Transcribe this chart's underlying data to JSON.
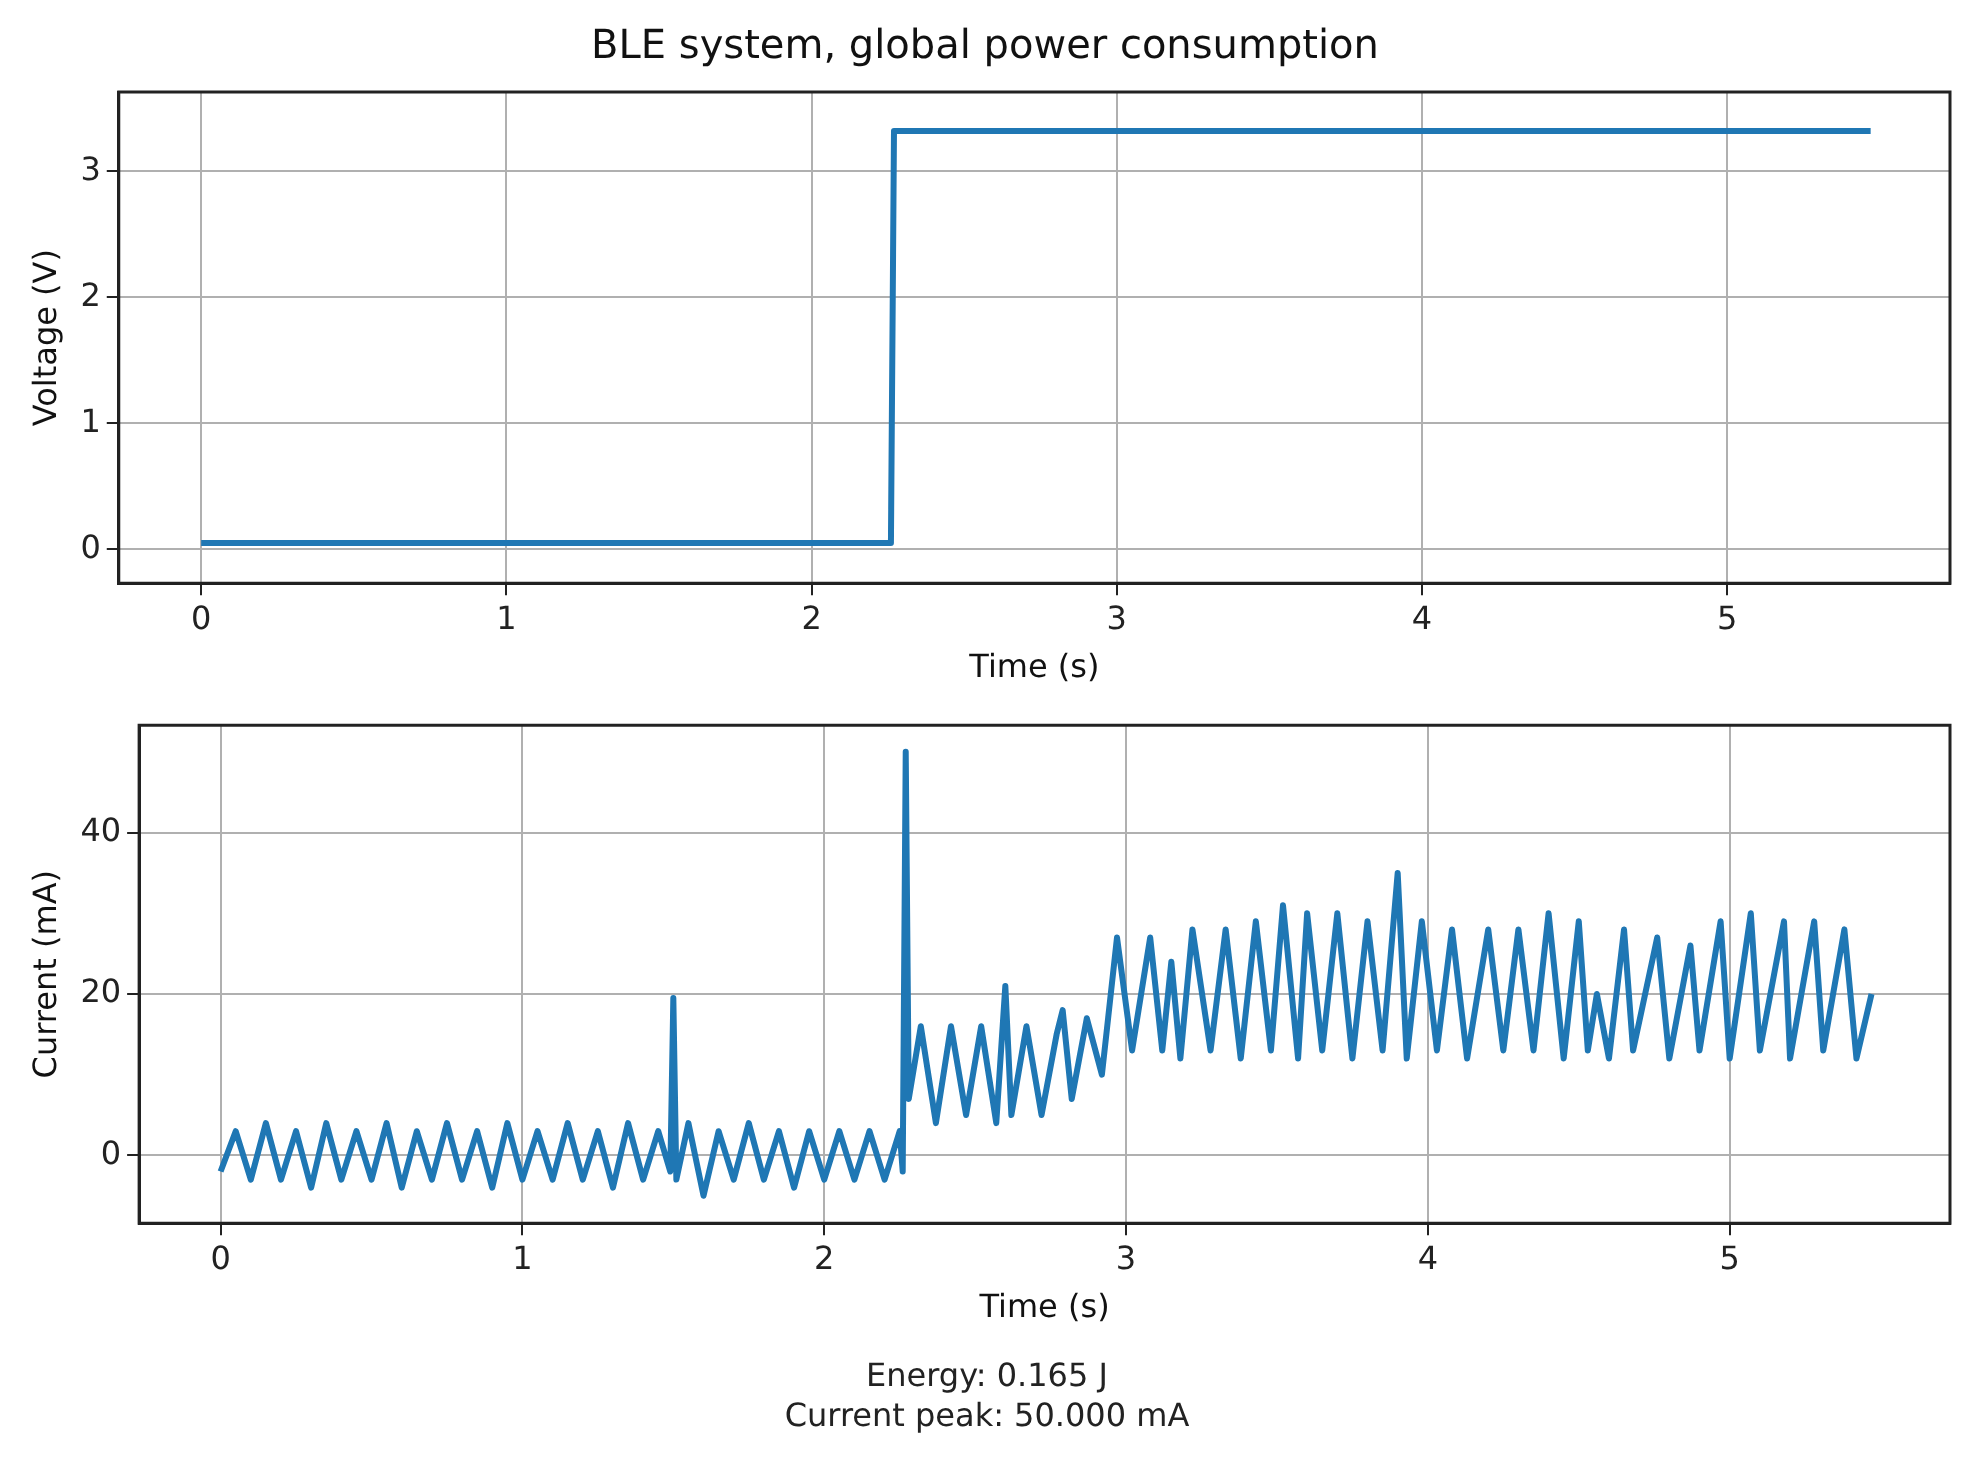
{
  "chart_data": [
    {
      "type": "line",
      "title": "BLE system, global power consumption",
      "xlabel": "Time (s)",
      "ylabel": "Voltage (V)",
      "xlim": [
        -0.27,
        5.73
      ],
      "xticks": [
        0,
        1,
        2,
        3,
        4,
        5
      ],
      "ylim": [
        -0.27,
        3.63
      ],
      "yticks": [
        0,
        1,
        2,
        3
      ],
      "grid": true,
      "legend": false,
      "marker": "none",
      "line_style": "solid",
      "series": [
        {
          "color": "#1f77b4",
          "x": [
            0,
            2.26,
            2.27,
            5.47
          ],
          "values": [
            0.05,
            0.05,
            3.32,
            3.32
          ]
        }
      ]
    },
    {
      "type": "line",
      "xlabel": "Time (s)",
      "ylabel": "Current (mA)",
      "xlim": [
        -0.27,
        5.73
      ],
      "xticks": [
        0,
        1,
        2,
        3,
        4,
        5
      ],
      "ylim": [
        -8.4,
        53.3
      ],
      "yticks": [
        0,
        20,
        40
      ],
      "grid": true,
      "legend": false,
      "marker": "none",
      "line_style": "solid",
      "annotations": [
        "Energy: 0.165 J",
        "Current peak: 50.000 mA"
      ],
      "series": [
        {
          "color": "#1f77b4",
          "x": [
            0,
            0.05,
            0.1,
            0.15,
            0.2,
            0.25,
            0.3,
            0.35,
            0.4,
            0.45,
            0.5,
            0.55,
            0.6,
            0.65,
            0.7,
            0.75,
            0.8,
            0.85,
            0.9,
            0.95,
            1.0,
            1.05,
            1.1,
            1.15,
            1.2,
            1.25,
            1.3,
            1.35,
            1.4,
            1.45,
            1.49,
            1.5,
            1.51,
            1.55,
            1.6,
            1.65,
            1.7,
            1.75,
            1.8,
            1.85,
            1.9,
            1.95,
            2.0,
            2.05,
            2.1,
            2.15,
            2.2,
            2.25,
            2.26,
            2.27,
            2.28,
            2.32,
            2.37,
            2.42,
            2.47,
            2.52,
            2.57,
            2.6,
            2.62,
            2.67,
            2.72,
            2.77,
            2.79,
            2.82,
            2.87,
            2.92,
            2.97,
            3.02,
            3.08,
            3.12,
            3.15,
            3.18,
            3.22,
            3.28,
            3.33,
            3.38,
            3.43,
            3.48,
            3.52,
            3.57,
            3.6,
            3.65,
            3.7,
            3.75,
            3.8,
            3.85,
            3.9,
            3.93,
            3.98,
            4.03,
            4.08,
            4.13,
            4.2,
            4.25,
            4.3,
            4.35,
            4.4,
            4.45,
            4.5,
            4.53,
            4.56,
            4.6,
            4.65,
            4.68,
            4.72,
            4.76,
            4.8,
            4.87,
            4.9,
            4.97,
            5.0,
            5.07,
            5.1,
            5.18,
            5.2,
            5.28,
            5.31,
            5.38,
            5.42,
            5.47
          ],
          "values": [
            -2,
            3,
            -3,
            4,
            -3,
            3,
            -4,
            4,
            -3,
            3,
            -3,
            4,
            -4,
            3,
            -3,
            4,
            -3,
            3,
            -4,
            4,
            -3,
            3,
            -3,
            4,
            -3,
            3,
            -4,
            4,
            -3,
            3,
            -2,
            19.5,
            -3,
            4,
            -5,
            3,
            -3,
            4,
            -3,
            3,
            -4,
            3,
            -3,
            3,
            -3,
            3,
            -3,
            3,
            -2,
            50,
            7,
            16,
            4,
            16,
            5,
            16,
            4,
            21,
            5,
            16,
            5,
            15,
            18,
            7,
            17,
            10,
            27,
            13,
            27,
            13,
            24,
            12,
            28,
            13,
            28,
            12,
            29,
            13,
            31,
            12,
            30,
            13,
            30,
            12,
            29,
            13,
            35,
            12,
            29,
            13,
            28,
            12,
            28,
            13,
            28,
            13,
            30,
            12,
            29,
            13,
            20,
            12,
            28,
            13,
            20,
            27,
            12,
            26,
            13,
            29,
            12,
            30,
            13,
            29,
            12,
            29,
            13,
            28,
            12,
            20
          ]
        }
      ]
    }
  ]
}
